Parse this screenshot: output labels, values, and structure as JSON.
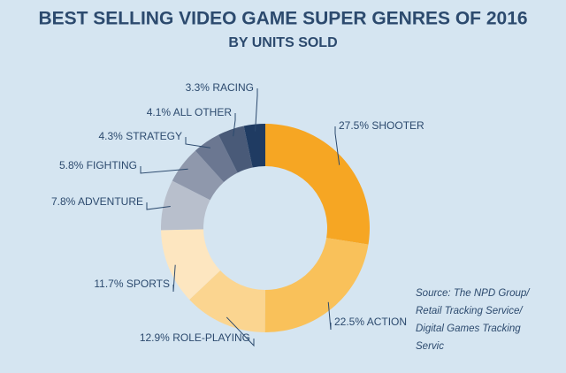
{
  "chart_data": {
    "type": "pie",
    "title": "BEST SELLING VIDEO GAME SUPER GENRES OF 2016",
    "subtitle": "BY UNITS SOLD",
    "categories": [
      "SHOOTER",
      "ACTION",
      "ROLE-PLAYING",
      "SPORTS",
      "ADVENTURE",
      "FIGHTING",
      "STRATEGY",
      "ALL OTHER",
      "RACING"
    ],
    "values": [
      27.5,
      22.5,
      12.9,
      11.7,
      7.8,
      5.8,
      4.3,
      4.1,
      3.3
    ],
    "value_labels": [
      "27.5%",
      "22.5%",
      "12.9%",
      "11.7%",
      "7.8%",
      "5.8%",
      "4.3%",
      "4.1%",
      "3.3%"
    ],
    "colors": [
      "#f6a623",
      "#f9c15a",
      "#fbd590",
      "#fde6c0",
      "#b8bfcc",
      "#8f98ac",
      "#6b7791",
      "#495a78",
      "#1f3b62"
    ],
    "source": [
      "Source: The NPD Group/",
      "Retail Tracking Service/",
      "Digital Games Tracking",
      "Servic"
    ]
  }
}
